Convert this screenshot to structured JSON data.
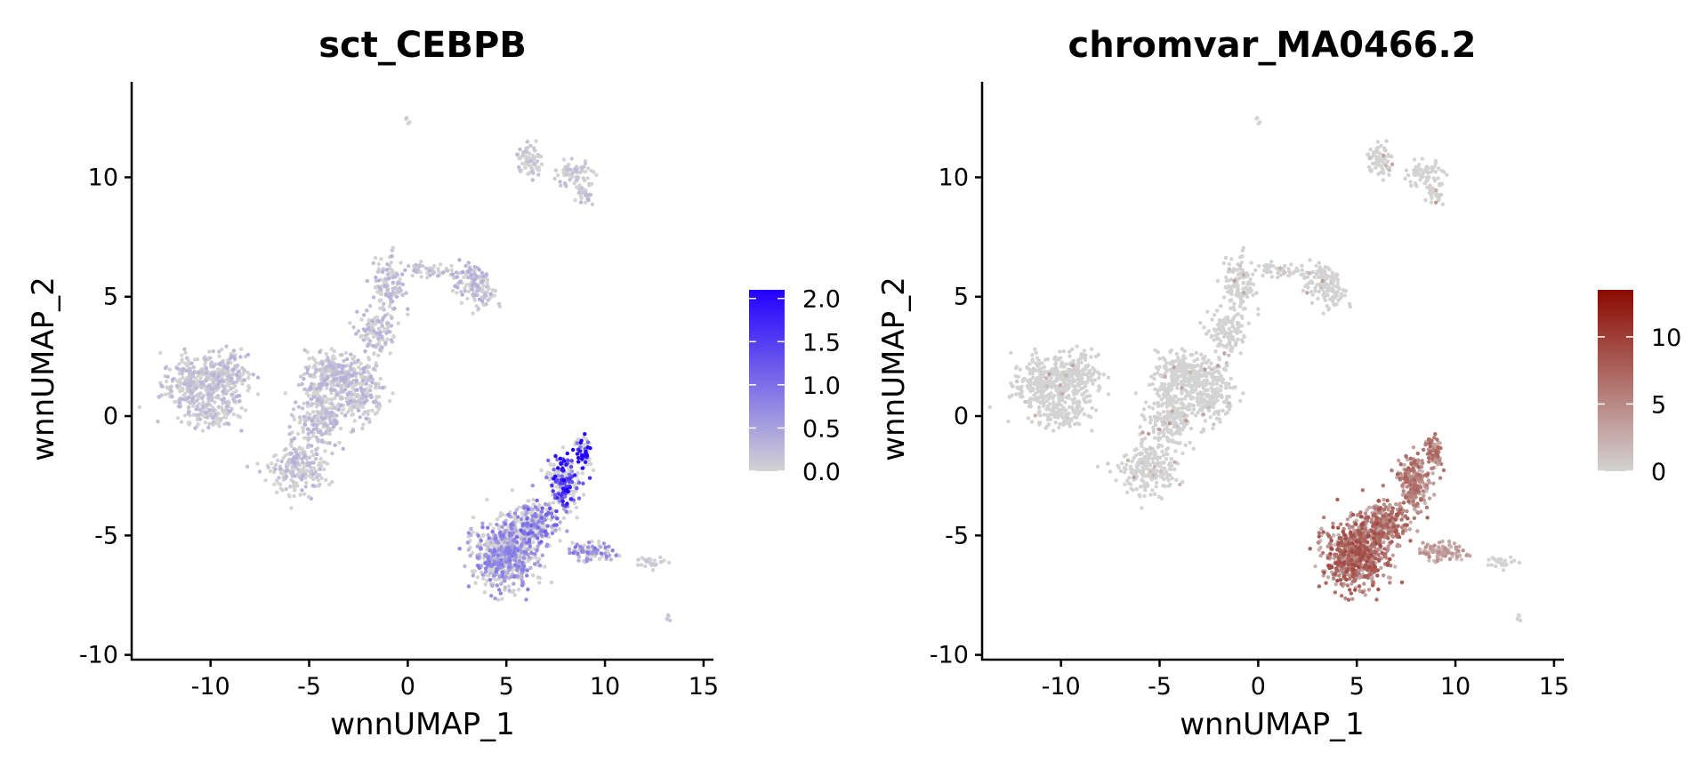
{
  "chart_data": [
    {
      "type": "scatter",
      "title": "sct_CEBPB",
      "xlabel": "wnnUMAP_1",
      "ylabel": "wnnUMAP_2",
      "xlim": [
        -14,
        15.5
      ],
      "ylim": [
        -10.2,
        14
      ],
      "xticks": [
        -10,
        -5,
        0,
        5,
        10,
        15
      ],
      "yticks": [
        -10,
        -5,
        0,
        5,
        10
      ],
      "grid": false,
      "legend": {
        "placement": "right",
        "min": 0,
        "max": 2.1,
        "ticks": [
          "0.0",
          "0.5",
          "1.0",
          "1.5",
          "2.0"
        ],
        "tick_values": [
          0,
          0.5,
          1.0,
          1.5,
          2.0
        ],
        "low_color": "#d3d3d3",
        "high_color": "#2200ff"
      },
      "color_key": "sct"
    },
    {
      "type": "scatter",
      "title": "chromvar_MA0466.2",
      "xlabel": "wnnUMAP_1",
      "ylabel": "wnnUMAP_2",
      "xlim": [
        -14,
        15.5
      ],
      "ylim": [
        -10.2,
        14
      ],
      "xticks": [
        -10,
        -5,
        0,
        5,
        10,
        15
      ],
      "yticks": [
        -10,
        -5,
        0,
        5,
        10
      ],
      "grid": false,
      "legend": {
        "placement": "right",
        "min": 0,
        "max": 13.5,
        "ticks": [
          "0",
          "5",
          "10"
        ],
        "tick_values": [
          0,
          5,
          10
        ],
        "low_color": "#d3d3d3",
        "high_color": "#8b0a00"
      },
      "color_key": "chromvar"
    }
  ],
  "clusters": [
    {
      "cx": -10.8,
      "cy": 1.3,
      "sx": 1.1,
      "sy": 0.8,
      "n": 300,
      "sct": 0.18,
      "chromvar": 0.2
    },
    {
      "cx": -9.2,
      "cy": 1.8,
      "sx": 0.9,
      "sy": 0.7,
      "n": 160,
      "sct": 0.2,
      "chromvar": 0.2
    },
    {
      "cx": -9.8,
      "cy": 0.2,
      "sx": 0.9,
      "sy": 0.5,
      "n": 100,
      "sct": 0.18,
      "chromvar": 0.2
    },
    {
      "cx": -5.6,
      "cy": -2.2,
      "sx": 0.9,
      "sy": 0.7,
      "n": 220,
      "sct": 0.2,
      "chromvar": 0.2
    },
    {
      "cx": -4.4,
      "cy": 0.0,
      "sx": 0.8,
      "sy": 1.0,
      "n": 260,
      "sct": 0.2,
      "chromvar": 0.2
    },
    {
      "cx": -3.8,
      "cy": 1.8,
      "sx": 0.9,
      "sy": 0.6,
      "n": 200,
      "sct": 0.22,
      "chromvar": 0.2
    },
    {
      "cx": -2.4,
      "cy": 1.0,
      "sx": 0.8,
      "sy": 0.8,
      "n": 180,
      "sct": 0.22,
      "chromvar": 0.2
    },
    {
      "cx": -1.6,
      "cy": 3.5,
      "sx": 0.6,
      "sy": 0.7,
      "n": 120,
      "sct": 0.2,
      "chromvar": 0.2
    },
    {
      "cx": -0.9,
      "cy": 5.5,
      "sx": 0.5,
      "sy": 0.8,
      "n": 120,
      "sct": 0.22,
      "chromvar": 0.2
    },
    {
      "cx": 0.9,
      "cy": 6.1,
      "sx": 0.7,
      "sy": 0.2,
      "n": 50,
      "sct": 0.2,
      "chromvar": 0.2
    },
    {
      "cx": 3.2,
      "cy": 5.8,
      "sx": 0.7,
      "sy": 0.4,
      "n": 90,
      "sct": 0.25,
      "chromvar": 0.4
    },
    {
      "cx": 3.8,
      "cy": 5.0,
      "sx": 0.5,
      "sy": 0.4,
      "n": 50,
      "sct": 0.25,
      "chromvar": 0.3
    },
    {
      "cx": 6.2,
      "cy": 10.7,
      "sx": 0.5,
      "sy": 0.4,
      "n": 70,
      "sct": 0.15,
      "chromvar": 0.4
    },
    {
      "cx": 8.4,
      "cy": 10.1,
      "sx": 0.6,
      "sy": 0.4,
      "n": 70,
      "sct": 0.15,
      "chromvar": 0.2
    },
    {
      "cx": 9.1,
      "cy": 9.3,
      "sx": 0.3,
      "sy": 0.3,
      "n": 30,
      "sct": 0.2,
      "chromvar": 0.2
    },
    {
      "cx": 0.0,
      "cy": 12.3,
      "sx": 0.1,
      "sy": 0.1,
      "n": 4,
      "sct": 0.1,
      "chromvar": 0.0
    },
    {
      "cx": 4.9,
      "cy": -5.8,
      "sx": 1.0,
      "sy": 0.9,
      "n": 650,
      "sct": 0.55,
      "chromvar": 5.5
    },
    {
      "cx": 6.3,
      "cy": -4.6,
      "sx": 0.9,
      "sy": 0.7,
      "n": 300,
      "sct": 0.7,
      "chromvar": 5.0
    },
    {
      "cx": 7.9,
      "cy": -2.8,
      "sx": 0.5,
      "sy": 0.8,
      "n": 220,
      "sct": 1.3,
      "chromvar": 4.5
    },
    {
      "cx": 8.9,
      "cy": -1.5,
      "sx": 0.3,
      "sy": 0.4,
      "n": 80,
      "sct": 1.7,
      "chromvar": 4.5
    },
    {
      "cx": 9.3,
      "cy": -5.7,
      "sx": 0.8,
      "sy": 0.25,
      "n": 80,
      "sct": 0.6,
      "chromvar": 3.0
    },
    {
      "cx": 12.4,
      "cy": -6.1,
      "sx": 0.5,
      "sy": 0.15,
      "n": 25,
      "sct": 0.1,
      "chromvar": 0.3
    },
    {
      "cx": 13.2,
      "cy": -8.5,
      "sx": 0.08,
      "sy": 0.15,
      "n": 5,
      "sct": 0.1,
      "chromvar": 0.0
    }
  ]
}
